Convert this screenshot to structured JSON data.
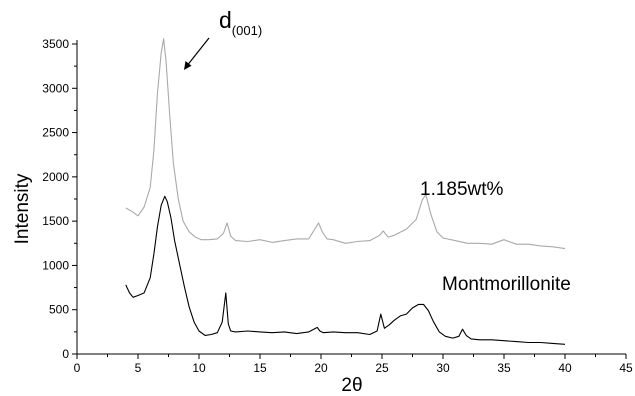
{
  "chart_data": {
    "type": "line",
    "xlabel": "2θ",
    "ylabel": "Intensity",
    "xlim": [
      0,
      45
    ],
    "ylim": [
      0,
      3500
    ],
    "xticks": [
      0,
      5,
      10,
      15,
      20,
      25,
      30,
      35,
      40,
      45
    ],
    "yticks": [
      0,
      500,
      1000,
      1500,
      2000,
      2500,
      3000,
      3500
    ],
    "grid": false,
    "annotations": [
      {
        "text": "d",
        "subscript": "(001)",
        "arrow_to": [
          7.2,
          3250
        ]
      }
    ],
    "series": [
      {
        "name": "1.185wt%",
        "color": "#a9a9a9",
        "x": [
          4.0,
          4.5,
          5.0,
          5.5,
          6.0,
          6.3,
          6.6,
          6.9,
          7.1,
          7.3,
          7.6,
          7.9,
          8.3,
          8.7,
          9.2,
          9.7,
          10.2,
          10.8,
          11.5,
          12.0,
          12.3,
          12.6,
          13.0,
          14.0,
          15.0,
          16.0,
          17.0,
          18.0,
          19.0,
          19.8,
          20.1,
          20.5,
          21.0,
          22.0,
          23.0,
          24.0,
          24.8,
          25.1,
          25.5,
          26.0,
          27.0,
          27.8,
          28.3,
          28.6,
          29.0,
          29.5,
          30.0,
          31.0,
          32.0,
          33.0,
          34.0,
          35.0,
          36.0,
          37.0,
          38.0,
          39.0,
          40.0
        ],
        "y": [
          1650,
          1610,
          1560,
          1660,
          1880,
          2300,
          2950,
          3400,
          3560,
          3300,
          2700,
          2150,
          1750,
          1500,
          1380,
          1320,
          1290,
          1290,
          1300,
          1360,
          1480,
          1330,
          1280,
          1270,
          1290,
          1260,
          1280,
          1300,
          1300,
          1480,
          1380,
          1300,
          1290,
          1250,
          1270,
          1280,
          1340,
          1390,
          1320,
          1340,
          1410,
          1520,
          1740,
          1800,
          1580,
          1380,
          1310,
          1280,
          1250,
          1250,
          1240,
          1290,
          1240,
          1240,
          1220,
          1210,
          1190
        ]
      },
      {
        "name": "Montmorillonite",
        "color": "#000000",
        "x": [
          4.0,
          4.3,
          4.6,
          5.0,
          5.5,
          6.0,
          6.3,
          6.6,
          6.9,
          7.2,
          7.4,
          7.7,
          8.0,
          8.4,
          8.8,
          9.2,
          9.6,
          10.0,
          10.5,
          11.0,
          11.5,
          11.9,
          12.2,
          12.4,
          12.6,
          13.0,
          14.0,
          15.0,
          16.0,
          17.0,
          18.0,
          19.0,
          19.7,
          19.9,
          20.2,
          21.0,
          22.0,
          23.0,
          24.0,
          24.6,
          24.9,
          25.2,
          25.6,
          26.0,
          26.5,
          27.0,
          27.5,
          28.0,
          28.4,
          28.8,
          29.2,
          29.7,
          30.2,
          30.8,
          31.3,
          31.6,
          31.9,
          32.3,
          33.0,
          34.0,
          35.0,
          36.0,
          37.0,
          38.0,
          39.0,
          40.0
        ],
        "y": [
          780,
          690,
          640,
          660,
          690,
          860,
          1130,
          1440,
          1680,
          1780,
          1720,
          1540,
          1280,
          1020,
          760,
          530,
          360,
          260,
          210,
          220,
          240,
          360,
          690,
          340,
          260,
          250,
          260,
          250,
          240,
          250,
          230,
          250,
          300,
          260,
          240,
          250,
          240,
          240,
          220,
          260,
          450,
          290,
          330,
          380,
          430,
          450,
          520,
          560,
          560,
          490,
          370,
          250,
          200,
          180,
          200,
          280,
          210,
          170,
          160,
          160,
          150,
          140,
          130,
          130,
          120,
          110
        ]
      }
    ]
  }
}
